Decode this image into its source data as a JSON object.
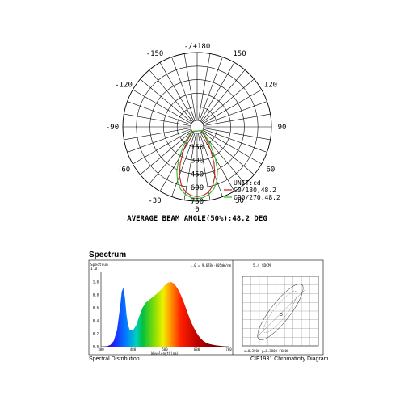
{
  "chart_data": [
    {
      "type": "polar",
      "angle_labels": [
        {
          "angle": 0,
          "text": "0"
        },
        {
          "angle": 30,
          "text": "30"
        },
        {
          "angle": 60,
          "text": "60"
        },
        {
          "angle": 90,
          "text": "90"
        },
        {
          "angle": 120,
          "text": "120"
        },
        {
          "angle": 150,
          "text": "150"
        },
        {
          "angle": 180,
          "text": "-/+180"
        },
        {
          "angle": -150,
          "text": "-150"
        },
        {
          "angle": -120,
          "text": "-120"
        },
        {
          "angle": -90,
          "text": "-90"
        },
        {
          "angle": -60,
          "text": "-60"
        },
        {
          "angle": -30,
          "text": "-30"
        }
      ],
      "radial_ticks": [
        "150",
        "300",
        "450",
        "600",
        "750"
      ],
      "radial_max": 750,
      "unit_label": "UNIT:cd",
      "series": [
        {
          "name": "C0/180,48.2",
          "color": "#cc1f1f",
          "points": [
            [
              0,
              700
            ],
            [
              5,
              690
            ],
            [
              10,
              660
            ],
            [
              15,
              600
            ],
            [
              20,
              500
            ],
            [
              25,
              370
            ],
            [
              30,
              230
            ],
            [
              35,
              120
            ],
            [
              40,
              55
            ],
            [
              45,
              20
            ],
            [
              50,
              5
            ],
            [
              55,
              0
            ]
          ]
        },
        {
          "name": "C90/270,48.2",
          "color": "#2db82d",
          "points": [
            [
              0,
              720
            ],
            [
              5,
              712
            ],
            [
              10,
              685
            ],
            [
              15,
              640
            ],
            [
              20,
              565
            ],
            [
              25,
              460
            ],
            [
              30,
              330
            ],
            [
              35,
              200
            ],
            [
              40,
              100
            ],
            [
              45,
              40
            ],
            [
              50,
              12
            ],
            [
              55,
              0
            ]
          ]
        }
      ],
      "footer": "AVERAGE BEAM ANGLE(50%):48.2 DEG"
    },
    {
      "type": "area",
      "title": "Spectrum",
      "inner_title": "Spectrum",
      "inner_unit": "1.0",
      "annotation": "1.0 = 9.678e-005mW/nm",
      "xlabel": "Wavelength(nm)",
      "x_ticks": [
        "380",
        "480",
        "580",
        "680",
        "780"
      ],
      "y_ticks": [
        "0.0",
        "0.2",
        "0.4",
        "0.6",
        "0.8",
        "1.0"
      ],
      "xlim": [
        380,
        780
      ],
      "ylim": [
        0,
        1.1
      ],
      "x": [
        380,
        400,
        410,
        420,
        430,
        440,
        445,
        450,
        455,
        460,
        465,
        470,
        480,
        490,
        500,
        510,
        520,
        530,
        540,
        550,
        560,
        570,
        580,
        590,
        600,
        610,
        620,
        630,
        640,
        650,
        660,
        670,
        680,
        690,
        700,
        710,
        720,
        740,
        760,
        780
      ],
      "values": [
        0,
        0.01,
        0.03,
        0.09,
        0.25,
        0.62,
        0.85,
        0.91,
        0.76,
        0.49,
        0.33,
        0.26,
        0.25,
        0.33,
        0.47,
        0.6,
        0.68,
        0.72,
        0.76,
        0.8,
        0.84,
        0.89,
        0.95,
        0.99,
        1.0,
        0.97,
        0.9,
        0.8,
        0.68,
        0.54,
        0.41,
        0.3,
        0.21,
        0.14,
        0.09,
        0.06,
        0.04,
        0.02,
        0.01,
        0
      ],
      "caption": "Spectral Distribution"
    },
    {
      "type": "scatter",
      "title": "CIE1931 Chromaticity Diagram",
      "label": "5.4 SDCM",
      "readout": "x=0.3900  y=0.3800  F6000",
      "caption": "CIE1931 Chromaticity Diagram"
    }
  ]
}
